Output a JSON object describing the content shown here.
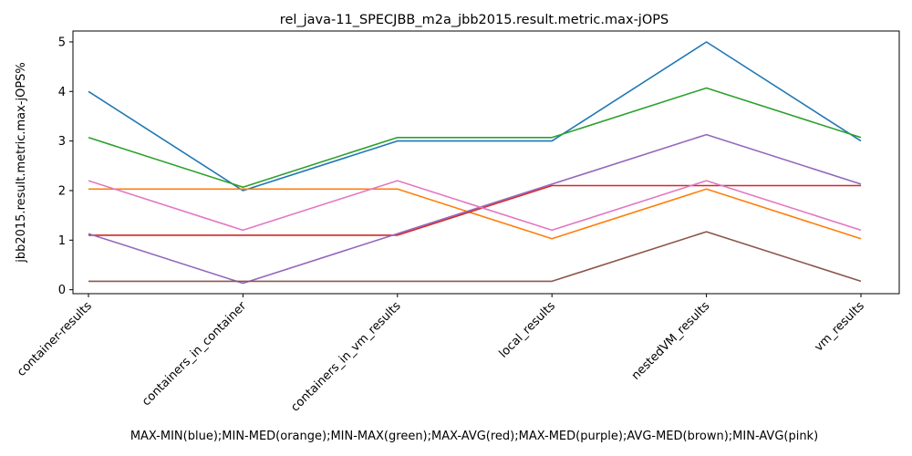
{
  "chart_data": {
    "type": "line",
    "title": "rel_java-11_SPECJBB_m2a_jbb2015.result.metric.max-jOPS",
    "xlabel": "MAX-MIN(blue);MIN-MED(orange);MIN-MAX(green);MAX-AVG(red);MAX-MED(purple);AVG-MED(brown);MIN-AVG(pink)",
    "ylabel": "jbb2015.result.metric.max-jOPS%",
    "categories": [
      "container-results",
      "containers_in_container",
      "containers_in_vm_results",
      "local_results",
      "nestedVM_results",
      "vm_results"
    ],
    "ylim": [
      -0.08,
      5.22
    ],
    "yticks": [
      0,
      1,
      2,
      3,
      4,
      5
    ],
    "grid": false,
    "series": [
      {
        "color": "#1f77b4",
        "values": [
          4.0,
          2.0,
          3.0,
          3.0,
          5.0,
          3.0
        ]
      },
      {
        "color": "#ff7f0e",
        "values": [
          2.03,
          2.03,
          2.03,
          1.03,
          2.03,
          1.03
        ]
      },
      {
        "color": "#2ca02c",
        "values": [
          3.07,
          2.07,
          3.07,
          3.07,
          4.07,
          3.07
        ]
      },
      {
        "color": "#d62728",
        "values": [
          1.1,
          1.1,
          1.1,
          2.1,
          2.1,
          2.1
        ]
      },
      {
        "color": "#9467bd",
        "values": [
          1.13,
          0.13,
          1.13,
          2.13,
          3.13,
          2.13
        ]
      },
      {
        "color": "#8c564b",
        "values": [
          0.17,
          0.17,
          0.17,
          0.17,
          1.17,
          0.17
        ]
      },
      {
        "color": "#e377c2",
        "values": [
          2.2,
          1.2,
          2.2,
          1.2,
          2.2,
          1.2
        ]
      }
    ]
  }
}
